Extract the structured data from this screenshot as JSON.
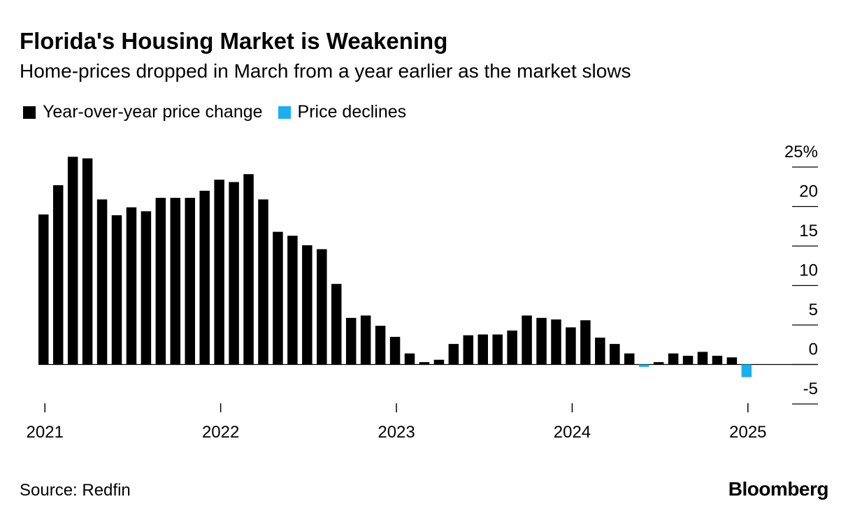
{
  "header": {
    "title": "Florida's Housing Market is Weakening",
    "subtitle": "Home-prices dropped in March from a year earlier as the market slows"
  },
  "legend": [
    {
      "label": "Year-over-year price change",
      "color": "#000000"
    },
    {
      "label": "Price declines",
      "color": "#1AAFF0"
    }
  ],
  "footer": {
    "source": "Source: Redfin",
    "logo": "Bloomberg"
  },
  "chart_data": {
    "type": "bar",
    "x_start": "2021-01",
    "frequency": "monthly",
    "values": [
      19,
      22.7,
      26.3,
      26.1,
      20.9,
      18.9,
      19.9,
      19.4,
      21.1,
      21.1,
      21.1,
      22,
      23.4,
      23.1,
      24.1,
      20.9,
      16.8,
      16.3,
      15.1,
      14.6,
      10.2,
      5.9,
      6.2,
      4.9,
      3.5,
      1.4,
      0.3,
      0.6,
      2.6,
      3.7,
      3.8,
      3.8,
      4.3,
      6.2,
      5.9,
      5.7,
      4.7,
      5.6,
      3.4,
      2.6,
      1.4,
      -0.3,
      0.3,
      1.4,
      1.1,
      1.6,
      1.1,
      0.9,
      -1.6
    ],
    "highlight_color": "#1AAFF0",
    "bar_color": "#000000",
    "xticks": [
      "2021",
      "2022",
      "2023",
      "2024",
      "2025"
    ],
    "yticks": [
      "25%",
      "20",
      "15",
      "10",
      "5",
      "0",
      "-5"
    ],
    "ylim": [
      -5,
      25
    ],
    "y_axis_side": "right"
  }
}
